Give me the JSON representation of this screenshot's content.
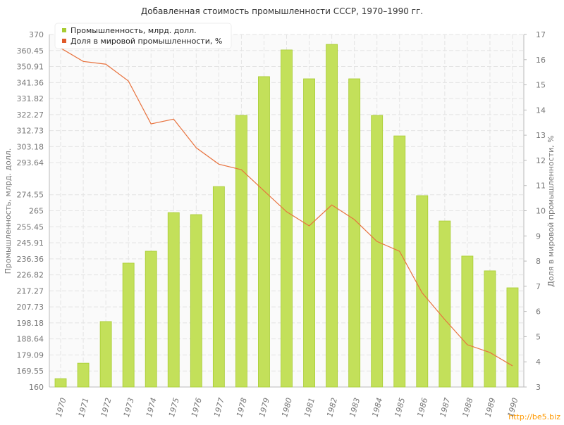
{
  "chart_data": {
    "type": "bar-line",
    "title": "Добавленная стоимость промышленности СССР, 1970–1990 гг.",
    "y_label": "Промышленность, млрд. долл.",
    "y2_label": "Доля в мировой промышленности, %",
    "watermark": "http://be5.biz",
    "categories": [
      "1970",
      "1971",
      "1972",
      "1973",
      "1974",
      "1975",
      "1976",
      "1977",
      "1978",
      "1979",
      "1980",
      "1981",
      "1982",
      "1983",
      "1984",
      "1985",
      "1986",
      "1987",
      "1988",
      "1989",
      "1990"
    ],
    "series": [
      {
        "name": "Промышленность, млрд. долл.",
        "type": "bar",
        "color": "#c3e05a",
        "values": [
          165.0,
          174.2,
          199.0,
          233.8,
          240.9,
          263.9,
          262.7,
          279.4,
          321.8,
          344.9,
          360.8,
          343.6,
          364.1,
          343.6,
          321.8,
          309.6,
          274.0,
          258.9,
          238.0,
          229.2,
          219.1
        ]
      },
      {
        "name": "Доля в мировой промышленности, %",
        "type": "line",
        "axis": "y2",
        "color": "#e8733f",
        "values": [
          16.46,
          15.93,
          15.82,
          15.15,
          13.45,
          13.64,
          12.5,
          11.85,
          11.63,
          10.79,
          9.96,
          9.4,
          10.23,
          9.65,
          8.78,
          8.39,
          6.74,
          5.68,
          4.68,
          4.37,
          3.84
        ]
      }
    ],
    "ylim": [
      160,
      370
    ],
    "yticks": [
      160,
      169.55,
      179.09,
      188.64,
      198.18,
      207.73,
      217.27,
      226.82,
      236.36,
      245.91,
      255.45,
      265,
      274.55,
      293.64,
      303.18,
      312.73,
      322.27,
      331.82,
      341.36,
      350.91,
      360.45,
      370
    ],
    "y2lim": [
      3,
      17
    ],
    "y2ticks": [
      3,
      4,
      5,
      6,
      7,
      8,
      9,
      10,
      11,
      12,
      13,
      14,
      15,
      16,
      17
    ],
    "grid": true,
    "legend": "top-left"
  }
}
